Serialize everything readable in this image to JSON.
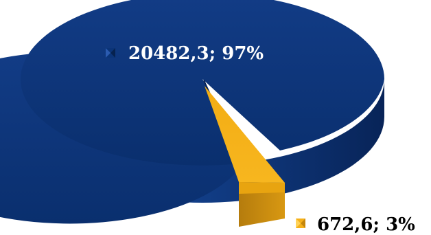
{
  "chart_data": {
    "type": "pie",
    "title": "",
    "slices": [
      {
        "value": 20482.3,
        "percent": 97,
        "label": "20482,3; 97%",
        "color": "#0b3478"
      },
      {
        "value": 672.6,
        "percent": 3,
        "label": "672,6; 3%",
        "color": "#f5b01a"
      }
    ],
    "exploded_slice": 1,
    "style": "3d",
    "legend": "none"
  }
}
